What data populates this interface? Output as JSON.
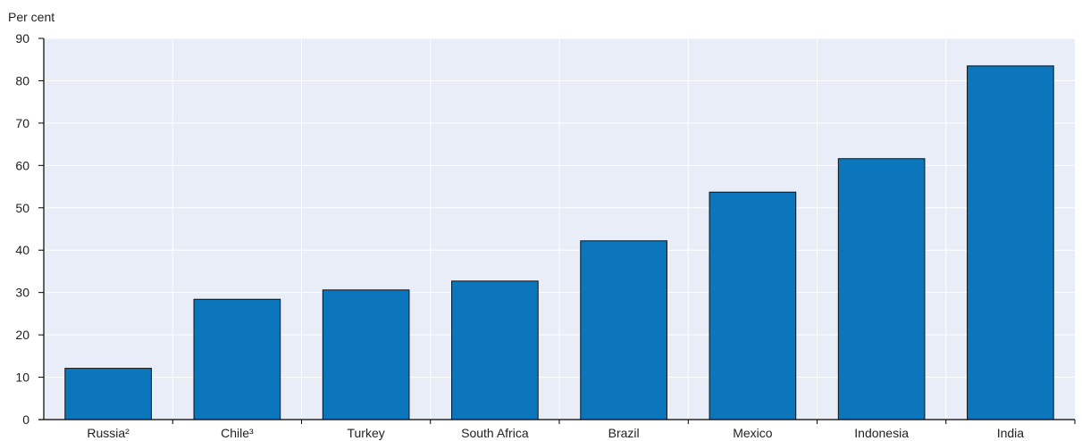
{
  "chart_data": {
    "type": "bar",
    "ylabel": "Per cent",
    "categories": [
      "Russia²",
      "Chile³",
      "Turkey",
      "South Africa",
      "Brazil",
      "Mexico",
      "Indonesia",
      "India"
    ],
    "values": [
      12.1,
      28.4,
      30.6,
      32.7,
      42.2,
      53.7,
      61.6,
      83.5
    ],
    "ylim": [
      0,
      90
    ],
    "yticks": [
      0,
      10,
      20,
      30,
      40,
      50,
      60,
      70,
      80,
      90
    ],
    "grid": true,
    "colors": {
      "bar": "#0b76bc",
      "bar_edge": "#111111",
      "plot_bg": "#e9edf7",
      "grid": "#ffffff",
      "axis": "#000000"
    }
  }
}
